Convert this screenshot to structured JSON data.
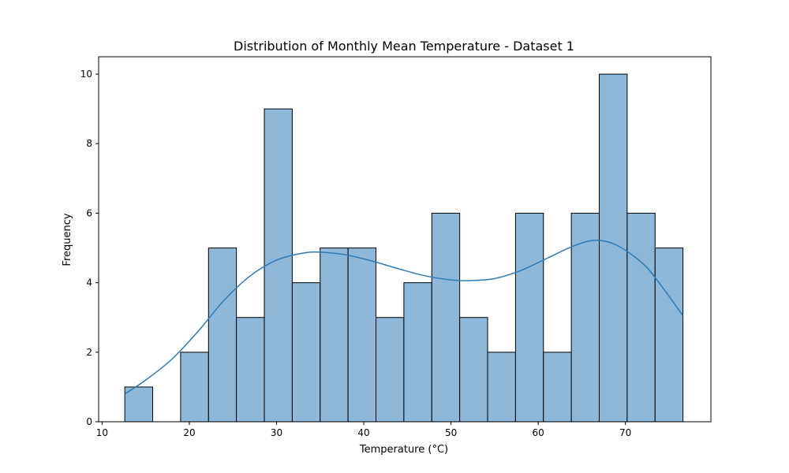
{
  "chart_data": {
    "type": "bar",
    "title": "Distribution of Monthly Mean Temperature - Dataset 1",
    "xlabel": "Temperature (°C)",
    "ylabel": "Frequency",
    "xlim": [
      9.6,
      79.8
    ],
    "ylim": [
      0,
      10.5
    ],
    "grid": false,
    "legend": "none",
    "xticks": [
      10,
      20,
      30,
      40,
      50,
      60,
      70
    ],
    "yticks": [
      0,
      2,
      4,
      6,
      8,
      10
    ],
    "bin_edges": [
      12.6,
      15.8,
      19.0,
      22.2,
      25.4,
      28.6,
      31.8,
      35.0,
      38.2,
      41.4,
      44.6,
      47.8,
      51.0,
      54.2,
      57.4,
      60.6,
      63.8,
      67.0,
      70.2,
      73.4,
      76.6
    ],
    "counts": [
      1,
      0,
      2,
      5,
      3,
      9,
      4,
      5,
      5,
      3,
      4,
      6,
      3,
      2,
      6,
      2,
      6,
      10,
      6,
      5
    ],
    "kde": {
      "x": [
        12.6,
        15,
        18,
        21,
        24,
        27,
        30,
        33,
        35,
        38,
        41,
        44,
        47,
        50,
        52,
        55,
        58,
        61,
        64,
        66.5,
        69,
        72,
        74,
        76.6
      ],
      "y": [
        0.8,
        1.2,
        1.8,
        2.6,
        3.5,
        4.2,
        4.65,
        4.85,
        4.88,
        4.8,
        4.62,
        4.4,
        4.2,
        4.08,
        4.06,
        4.12,
        4.35,
        4.7,
        5.05,
        5.22,
        5.08,
        4.55,
        3.95,
        3.05
      ]
    },
    "colors": {
      "bar_fill": "#8db8da",
      "bar_edge": "#000000",
      "kde_line": "#2f7bb6"
    }
  }
}
